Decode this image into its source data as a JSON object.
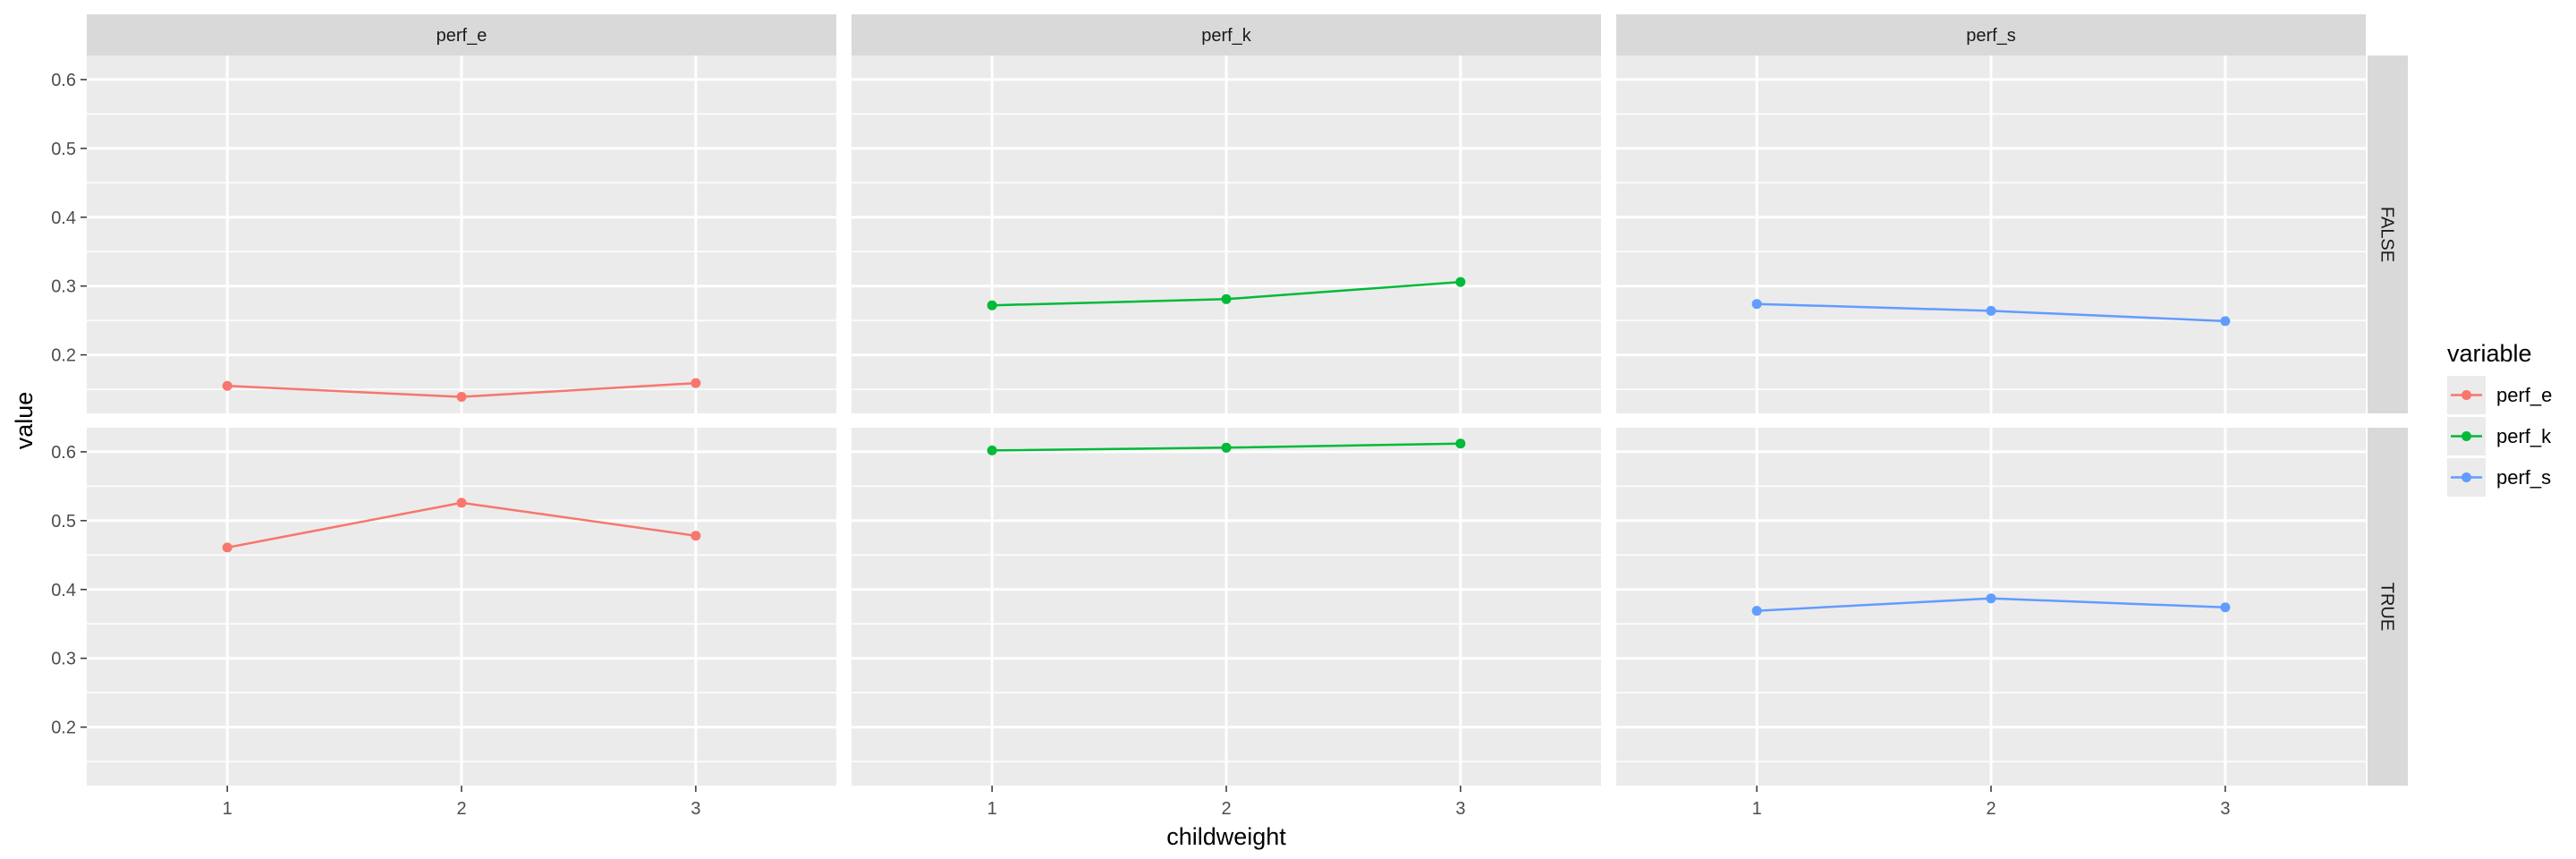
{
  "chart_data": {
    "type": "line",
    "facet_columns": [
      "perf_e",
      "perf_k",
      "perf_s"
    ],
    "facet_rows": [
      "FALSE",
      "TRUE"
    ],
    "x": [
      1,
      2,
      3
    ],
    "x_ticks": [
      "1",
      "2",
      "3"
    ],
    "xlim": [
      0.4,
      3.6
    ],
    "ylim": [
      0.115,
      0.635
    ],
    "y_ticks": [
      "0.2",
      "0.3",
      "0.4",
      "0.5",
      "0.6"
    ],
    "xlabel": "childweight",
    "ylabel": "value",
    "grid": true,
    "legend": {
      "title": "variable",
      "position": "right",
      "entries": [
        "perf_e",
        "perf_k",
        "perf_s"
      ]
    },
    "colors": {
      "perf_e": "#F8766D",
      "perf_k": "#00BA38",
      "perf_s": "#619CFF"
    },
    "series": [
      {
        "name": "perf_e",
        "facet_row": "FALSE",
        "facet_col": "perf_e",
        "values": [
          0.155,
          0.139,
          0.159
        ]
      },
      {
        "name": "perf_k",
        "facet_row": "FALSE",
        "facet_col": "perf_k",
        "values": [
          0.272,
          0.281,
          0.306
        ]
      },
      {
        "name": "perf_s",
        "facet_row": "FALSE",
        "facet_col": "perf_s",
        "values": [
          0.274,
          0.264,
          0.249
        ]
      },
      {
        "name": "perf_e",
        "facet_row": "TRUE",
        "facet_col": "perf_e",
        "values": [
          0.461,
          0.526,
          0.478
        ]
      },
      {
        "name": "perf_k",
        "facet_row": "TRUE",
        "facet_col": "perf_k",
        "values": [
          0.602,
          0.606,
          0.612
        ]
      },
      {
        "name": "perf_s",
        "facet_row": "TRUE",
        "facet_col": "perf_s",
        "values": [
          0.369,
          0.387,
          0.374
        ]
      }
    ]
  }
}
